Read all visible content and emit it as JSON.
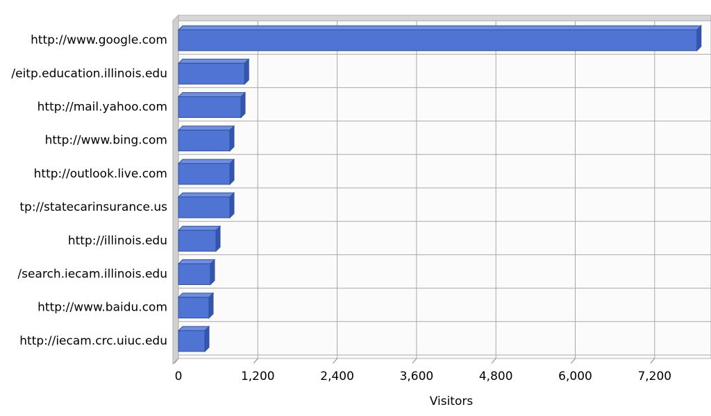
{
  "chart_data": {
    "type": "bar",
    "orientation": "horizontal",
    "x_label": "Visitors",
    "categories": [
      "http://www.google.com",
      "/eitp.education.illinois.edu",
      "http://mail.yahoo.com",
      "http://www.bing.com",
      "http://outlook.live.com",
      "tp://statecarinsurance.us",
      "http://illinois.edu",
      "/search.iecam.illinois.edu",
      "http://www.baidu.com",
      "http://iecam.crc.uiuc.edu"
    ],
    "values": [
      7840,
      1000,
      945,
      777,
      777,
      777,
      567,
      483,
      462,
      399
    ],
    "color": "#4f74d3",
    "xlim": [
      0,
      8000
    ],
    "xticks": [
      0,
      {
        "value": 1200,
        "label": "1,200"
      },
      {
        "value": 2400,
        "label": "2,400"
      },
      {
        "value": 3600,
        "label": "3,600"
      },
      {
        "value": 4800,
        "label": "4,800"
      },
      {
        "value": 6000,
        "label": "6,000"
      },
      {
        "value": 7200,
        "label": "7,200"
      }
    ],
    "grid": true
  }
}
